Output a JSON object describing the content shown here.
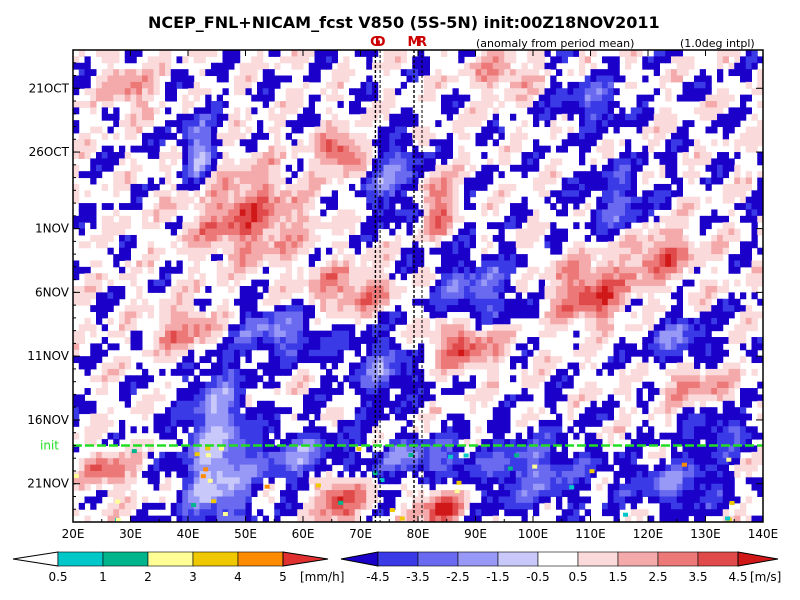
{
  "chart_data": {
    "type": "heatmap",
    "title": "NCEP_FNL+NICAM_fcst V850 (5S-5N) init:00Z18NOV2011",
    "subtitle_anomaly": "(anomaly from period mean)",
    "subtitle_interp": "(1.0deg intpl)",
    "x_ticks": [
      "20E",
      "30E",
      "40E",
      "50E",
      "60E",
      "70E",
      "80E",
      "90E",
      "100E",
      "110E",
      "120E",
      "130E",
      "140E"
    ],
    "x_values": [
      20,
      30,
      40,
      50,
      60,
      70,
      80,
      90,
      100,
      110,
      120,
      130,
      140
    ],
    "x_range": [
      20,
      140
    ],
    "y_ticks": [
      "21OCT",
      "26OCT",
      "1NOV",
      "6NOV",
      "11NOV",
      "16NOV",
      "21NOV"
    ],
    "y_days": [
      3,
      8,
      14,
      19,
      24,
      29,
      34
    ],
    "y_range_days": [
      0,
      37
    ],
    "init_label": "init",
    "init_day": 31,
    "site_markers": [
      {
        "label": "G",
        "lon": 72.6
      },
      {
        "label": "D",
        "lon": 73.4
      },
      {
        "label": "M",
        "lon": 79.3
      },
      {
        "label": "R",
        "lon": 80.7
      }
    ],
    "colors": {
      "init_line": "#22dd22",
      "site_label": "#cc0000",
      "neg": [
        "#1a00c8",
        "#3a3ae6",
        "#6a6af0",
        "#9898f6",
        "#c8c8fa"
      ],
      "pos": [
        "#fadada",
        "#f4aaaa",
        "#ec7878",
        "#e04a4a",
        "#d01818"
      ]
    },
    "features": [
      {
        "sign": "pos",
        "lon": 50,
        "day": 13,
        "amp": 3.5,
        "wlon": 10,
        "wday": 3.5
      },
      {
        "sign": "pos",
        "lon": 67,
        "day": 8,
        "amp": 4.5,
        "wlon": 4,
        "wday": 1.5
      },
      {
        "sign": "neg",
        "lon": 42,
        "day": 8,
        "amp": 4.2,
        "wlon": 3,
        "wday": 3
      },
      {
        "sign": "neg",
        "lon": 76,
        "day": 10,
        "amp": 3.5,
        "wlon": 5,
        "wday": 3
      },
      {
        "sign": "pos",
        "lon": 83,
        "day": 12,
        "amp": 4.0,
        "wlon": 3,
        "wday": 2.5
      },
      {
        "sign": "pos",
        "lon": 40,
        "day": 22,
        "amp": 3.0,
        "wlon": 6,
        "wday": 2
      },
      {
        "sign": "pos",
        "lon": 68,
        "day": 19,
        "amp": 3.0,
        "wlon": 8,
        "wday": 2
      },
      {
        "sign": "neg",
        "lon": 45,
        "day": 28,
        "amp": 3.5,
        "wlon": 5,
        "wday": 4
      },
      {
        "sign": "neg",
        "lon": 56,
        "day": 22,
        "amp": 3.5,
        "wlon": 8,
        "wday": 2
      },
      {
        "sign": "neg",
        "lon": 74,
        "day": 25,
        "amp": 3.0,
        "wlon": 6,
        "wday": 3
      },
      {
        "sign": "pos",
        "lon": 88,
        "day": 23,
        "amp": 4.0,
        "wlon": 7,
        "wday": 2
      },
      {
        "sign": "neg",
        "lon": 90,
        "day": 19,
        "amp": 3.0,
        "wlon": 8,
        "wday": 3
      },
      {
        "sign": "pos",
        "lon": 110,
        "day": 19,
        "amp": 4.0,
        "wlon": 7,
        "wday": 2.5
      },
      {
        "sign": "pos",
        "lon": 122,
        "day": 16,
        "amp": 3.5,
        "wlon": 6,
        "wday": 2
      },
      {
        "sign": "neg",
        "lon": 115,
        "day": 12,
        "amp": 2.5,
        "wlon": 6,
        "wday": 3
      },
      {
        "sign": "neg",
        "lon": 125,
        "day": 23,
        "amp": 3.0,
        "wlon": 6,
        "wday": 2
      },
      {
        "sign": "pos",
        "lon": 128,
        "day": 26,
        "amp": 3.0,
        "wlon": 6,
        "wday": 1.5
      },
      {
        "sign": "neg",
        "lon": 133,
        "day": 30,
        "amp": 2.5,
        "wlon": 6,
        "wday": 1.5
      },
      {
        "sign": "neg",
        "lon": 45,
        "day": 34,
        "amp": 4.5,
        "wlon": 6,
        "wday": 4
      },
      {
        "sign": "neg",
        "lon": 60,
        "day": 32,
        "amp": 3.5,
        "wlon": 8,
        "wday": 2
      },
      {
        "sign": "pos",
        "lon": 66,
        "day": 35,
        "amp": 4.5,
        "wlon": 4,
        "wday": 2
      },
      {
        "sign": "pos",
        "lon": 84,
        "day": 36,
        "amp": 4.5,
        "wlon": 4,
        "wday": 1.5
      },
      {
        "sign": "neg",
        "lon": 80,
        "day": 32,
        "amp": 3.5,
        "wlon": 8,
        "wday": 1.5
      },
      {
        "sign": "neg",
        "lon": 100,
        "day": 33,
        "amp": 3.0,
        "wlon": 10,
        "wday": 3
      },
      {
        "sign": "pos",
        "lon": 26,
        "day": 33,
        "amp": 3.5,
        "wlon": 4,
        "wday": 1.5
      },
      {
        "sign": "neg",
        "lon": 125,
        "day": 34,
        "amp": 3.0,
        "wlon": 8,
        "wday": 2
      },
      {
        "sign": "pos",
        "lon": 30,
        "day": 3,
        "amp": 2.5,
        "wlon": 4,
        "wday": 2
      },
      {
        "sign": "neg",
        "lon": 110,
        "day": 4,
        "amp": 2.5,
        "wlon": 6,
        "wday": 2
      },
      {
        "sign": "pos",
        "lon": 95,
        "day": 2,
        "amp": 2.5,
        "wlon": 6,
        "wday": 1.5
      }
    ],
    "rain_legend": {
      "unit": "[mm/h]",
      "labels": [
        "0.5",
        "1",
        "2",
        "3",
        "4",
        "5"
      ],
      "colors": [
        "#00c8c8",
        "#00b48c",
        "#ffff96",
        "#f0c800",
        "#ff8c00"
      ]
    },
    "wind_legend": {
      "unit": "[m/s]",
      "labels": [
        "-4.5",
        "-3.5",
        "-2.5",
        "-1.5",
        "-0.5",
        "0.5",
        "1.5",
        "2.5",
        "3.5",
        "4.5"
      ],
      "colors": [
        "#1a00c8",
        "#3a3ae6",
        "#6a6af0",
        "#9898f6",
        "#c8c8fa",
        "#ffffff",
        "#fadada",
        "#f4aaaa",
        "#ec7878",
        "#e04a4a",
        "#d01818"
      ]
    }
  }
}
